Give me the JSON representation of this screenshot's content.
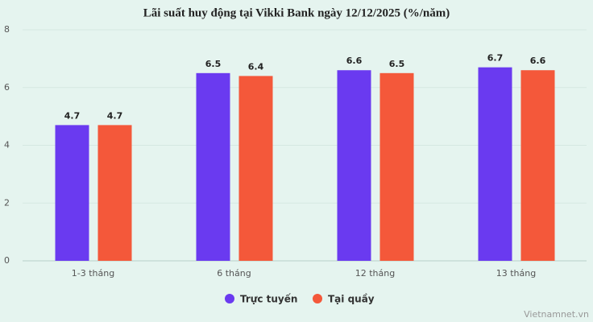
{
  "chart_data": {
    "type": "bar",
    "title": "Lãi suất huy động tại Vikki Bank ngày 12/12/2025 (%/năm)",
    "categories": [
      "1-3 tháng",
      "6 tháng",
      "12 tháng",
      "13 tháng"
    ],
    "series": [
      {
        "name": "Trực tuyến",
        "color": "#6a3af0",
        "values": [
          4.7,
          6.5,
          6.6,
          6.7
        ]
      },
      {
        "name": "Tại quầy",
        "color": "#f4583a",
        "values": [
          4.7,
          6.4,
          6.5,
          6.6
        ]
      }
    ],
    "ylim": [
      0,
      8
    ],
    "yticks": [
      0,
      2,
      4,
      6,
      8
    ],
    "grid": true,
    "source": "Vietnamnet.vn"
  }
}
